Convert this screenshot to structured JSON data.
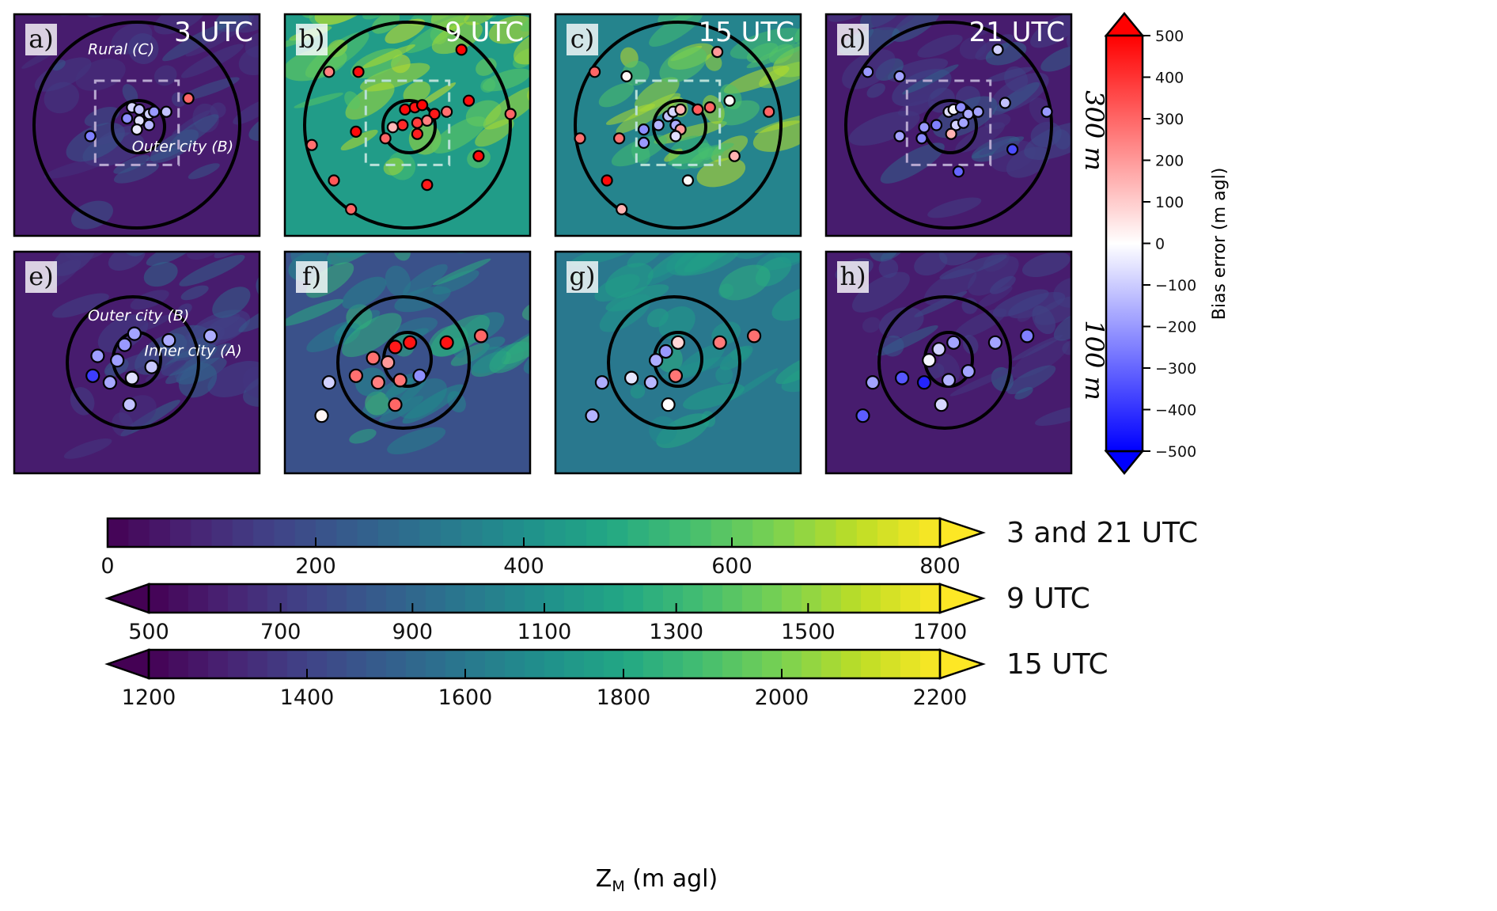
{
  "chart_data": {
    "type": "heatmap",
    "description": "Eight map panels of mixing height Z_M with station bias-error markers overlaid",
    "rows": [
      {
        "label": "300 m",
        "panels": [
          "a",
          "b",
          "c",
          "d"
        ]
      },
      {
        "label": "100 m",
        "panels": [
          "e",
          "f",
          "g",
          "h"
        ]
      }
    ],
    "panels": [
      {
        "id": "a",
        "letter": "a)",
        "time": "3 UTC",
        "row": 0,
        "col": 0,
        "bg_scale": "3 and 21 UTC",
        "background": "dark",
        "show_box": true,
        "labels": [
          {
            "text": "Rural (C)",
            "pos": [
              0.3,
              0.18
            ]
          },
          {
            "text": "Outer city (B)",
            "pos": [
              0.48,
              0.62
            ]
          }
        ],
        "stations": [
          {
            "x": 0.48,
            "y": 0.42,
            "bias": -80
          },
          {
            "x": 0.51,
            "y": 0.43,
            "bias": -120
          },
          {
            "x": 0.55,
            "y": 0.45,
            "bias": -90
          },
          {
            "x": 0.51,
            "y": 0.48,
            "bias": -60
          },
          {
            "x": 0.57,
            "y": 0.44,
            "bias": -200
          },
          {
            "x": 0.62,
            "y": 0.44,
            "bias": -120
          },
          {
            "x": 0.46,
            "y": 0.47,
            "bias": -220
          },
          {
            "x": 0.55,
            "y": 0.5,
            "bias": -140
          },
          {
            "x": 0.5,
            "y": 0.52,
            "bias": -40
          },
          {
            "x": 0.31,
            "y": 0.55,
            "bias": -250
          },
          {
            "x": 0.71,
            "y": 0.38,
            "bias": 300
          }
        ]
      },
      {
        "id": "b",
        "letter": "b)",
        "time": "9 UTC",
        "row": 0,
        "col": 1,
        "bg_scale": "9 UTC",
        "background": "bright",
        "show_box": true,
        "labels": [],
        "stations": [
          {
            "x": 0.49,
            "y": 0.43,
            "bias": 480
          },
          {
            "x": 0.53,
            "y": 0.42,
            "bias": 460
          },
          {
            "x": 0.56,
            "y": 0.41,
            "bias": 490
          },
          {
            "x": 0.61,
            "y": 0.45,
            "bias": 450
          },
          {
            "x": 0.66,
            "y": 0.44,
            "bias": 280
          },
          {
            "x": 0.54,
            "y": 0.49,
            "bias": 380
          },
          {
            "x": 0.58,
            "y": 0.48,
            "bias": 250
          },
          {
            "x": 0.48,
            "y": 0.5,
            "bias": 420
          },
          {
            "x": 0.54,
            "y": 0.54,
            "bias": 440
          },
          {
            "x": 0.44,
            "y": 0.51,
            "bias": 140
          },
          {
            "x": 0.41,
            "y": 0.56,
            "bias": 300
          },
          {
            "x": 0.29,
            "y": 0.53,
            "bias": 480
          },
          {
            "x": 0.18,
            "y": 0.26,
            "bias": 250
          },
          {
            "x": 0.3,
            "y": 0.26,
            "bias": 470
          },
          {
            "x": 0.72,
            "y": 0.16,
            "bias": 490
          },
          {
            "x": 0.75,
            "y": 0.39,
            "bias": 470
          },
          {
            "x": 0.92,
            "y": 0.45,
            "bias": 300
          },
          {
            "x": 0.11,
            "y": 0.59,
            "bias": 280
          },
          {
            "x": 0.79,
            "y": 0.64,
            "bias": 480
          },
          {
            "x": 0.2,
            "y": 0.75,
            "bias": 330
          },
          {
            "x": 0.58,
            "y": 0.77,
            "bias": 450
          },
          {
            "x": 0.27,
            "y": 0.88,
            "bias": 300
          }
        ]
      },
      {
        "id": "c",
        "letter": "c)",
        "time": "15 UTC",
        "row": 0,
        "col": 2,
        "bg_scale": "15 UTC",
        "background": "green",
        "show_box": true,
        "labels": [],
        "stations": [
          {
            "x": 0.46,
            "y": 0.46,
            "bias": -120
          },
          {
            "x": 0.48,
            "y": 0.44,
            "bias": -80
          },
          {
            "x": 0.51,
            "y": 0.43,
            "bias": 150
          },
          {
            "x": 0.49,
            "y": 0.5,
            "bias": -160
          },
          {
            "x": 0.51,
            "y": 0.52,
            "bias": 200
          },
          {
            "x": 0.49,
            "y": 0.55,
            "bias": -60
          },
          {
            "x": 0.42,
            "y": 0.5,
            "bias": -150
          },
          {
            "x": 0.36,
            "y": 0.52,
            "bias": -220
          },
          {
            "x": 0.36,
            "y": 0.58,
            "bias": -200
          },
          {
            "x": 0.58,
            "y": 0.43,
            "bias": 320
          },
          {
            "x": 0.63,
            "y": 0.42,
            "bias": 300
          },
          {
            "x": 0.26,
            "y": 0.56,
            "bias": 280
          },
          {
            "x": 0.16,
            "y": 0.26,
            "bias": 300
          },
          {
            "x": 0.29,
            "y": 0.28,
            "bias": 20
          },
          {
            "x": 0.66,
            "y": 0.17,
            "bias": 200
          },
          {
            "x": 0.71,
            "y": 0.39,
            "bias": 10
          },
          {
            "x": 0.87,
            "y": 0.44,
            "bias": 300
          },
          {
            "x": 0.1,
            "y": 0.56,
            "bias": 280
          },
          {
            "x": 0.73,
            "y": 0.64,
            "bias": 150
          },
          {
            "x": 0.21,
            "y": 0.75,
            "bias": 480
          },
          {
            "x": 0.54,
            "y": 0.75,
            "bias": 10
          },
          {
            "x": 0.27,
            "y": 0.88,
            "bias": 150
          }
        ]
      },
      {
        "id": "d",
        "letter": "d)",
        "time": "21 UTC",
        "row": 0,
        "col": 3,
        "bg_scale": "3 and 21 UTC",
        "background": "dark",
        "show_box": true,
        "labels": [],
        "stations": [
          {
            "x": 0.5,
            "y": 0.44,
            "bias": -60
          },
          {
            "x": 0.52,
            "y": 0.43,
            "bias": -20
          },
          {
            "x": 0.55,
            "y": 0.42,
            "bias": -220
          },
          {
            "x": 0.58,
            "y": 0.45,
            "bias": -160
          },
          {
            "x": 0.62,
            "y": 0.44,
            "bias": -180
          },
          {
            "x": 0.53,
            "y": 0.5,
            "bias": -90
          },
          {
            "x": 0.56,
            "y": 0.49,
            "bias": -180
          },
          {
            "x": 0.45,
            "y": 0.5,
            "bias": -250
          },
          {
            "x": 0.4,
            "y": 0.51,
            "bias": -200
          },
          {
            "x": 0.39,
            "y": 0.56,
            "bias": -230
          },
          {
            "x": 0.51,
            "y": 0.54,
            "bias": 150
          },
          {
            "x": 0.3,
            "y": 0.55,
            "bias": -180
          },
          {
            "x": 0.17,
            "y": 0.26,
            "bias": -200
          },
          {
            "x": 0.3,
            "y": 0.28,
            "bias": -180
          },
          {
            "x": 0.7,
            "y": 0.16,
            "bias": -90
          },
          {
            "x": 0.73,
            "y": 0.4,
            "bias": -120
          },
          {
            "x": 0.9,
            "y": 0.44,
            "bias": -200
          },
          {
            "x": 0.76,
            "y": 0.61,
            "bias": -350
          },
          {
            "x": 0.54,
            "y": 0.71,
            "bias": -300
          }
        ]
      },
      {
        "id": "e",
        "letter": "e)",
        "time": "",
        "row": 1,
        "col": 0,
        "bg_scale": "3 and 21 UTC",
        "background": "dark",
        "show_box": false,
        "labels": [
          {
            "text": "Outer city (B)",
            "pos": [
              0.3,
              0.31
            ]
          },
          {
            "text": "Inner city (A)",
            "pos": [
              0.53,
              0.47
            ]
          }
        ],
        "stations": [
          {
            "x": 0.49,
            "y": 0.37,
            "bias": -180
          },
          {
            "x": 0.63,
            "y": 0.4,
            "bias": -160
          },
          {
            "x": 0.8,
            "y": 0.38,
            "bias": -160
          },
          {
            "x": 0.34,
            "y": 0.47,
            "bias": -190
          },
          {
            "x": 0.45,
            "y": 0.42,
            "bias": -200
          },
          {
            "x": 0.42,
            "y": 0.49,
            "bias": -190
          },
          {
            "x": 0.56,
            "y": 0.52,
            "bias": -110
          },
          {
            "x": 0.48,
            "y": 0.57,
            "bias": -60
          },
          {
            "x": 0.32,
            "y": 0.56,
            "bias": -380
          },
          {
            "x": 0.39,
            "y": 0.59,
            "bias": -170
          },
          {
            "x": 0.47,
            "y": 0.69,
            "bias": -120
          }
        ]
      },
      {
        "id": "f",
        "letter": "f)",
        "time": "",
        "row": 1,
        "col": 1,
        "bg_scale": "9 UTC",
        "background": "medium",
        "show_box": false,
        "labels": [],
        "stations": [
          {
            "x": 0.45,
            "y": 0.43,
            "bias": 450
          },
          {
            "x": 0.51,
            "y": 0.41,
            "bias": 460
          },
          {
            "x": 0.66,
            "y": 0.41,
            "bias": 460
          },
          {
            "x": 0.8,
            "y": 0.38,
            "bias": 300
          },
          {
            "x": 0.36,
            "y": 0.48,
            "bias": 280
          },
          {
            "x": 0.42,
            "y": 0.5,
            "bias": 200
          },
          {
            "x": 0.55,
            "y": 0.56,
            "bias": -220
          },
          {
            "x": 0.47,
            "y": 0.58,
            "bias": 270
          },
          {
            "x": 0.29,
            "y": 0.56,
            "bias": 280
          },
          {
            "x": 0.38,
            "y": 0.59,
            "bias": 250
          },
          {
            "x": 0.18,
            "y": 0.59,
            "bias": -90
          },
          {
            "x": 0.15,
            "y": 0.74,
            "bias": 20
          },
          {
            "x": 0.45,
            "y": 0.69,
            "bias": 300
          }
        ]
      },
      {
        "id": "g",
        "letter": "g)",
        "time": "",
        "row": 1,
        "col": 2,
        "bg_scale": "15 UTC",
        "background": "teal",
        "show_box": false,
        "labels": [],
        "stations": [
          {
            "x": 0.5,
            "y": 0.41,
            "bias": 80
          },
          {
            "x": 0.45,
            "y": 0.45,
            "bias": -200
          },
          {
            "x": 0.67,
            "y": 0.41,
            "bias": 260
          },
          {
            "x": 0.81,
            "y": 0.38,
            "bias": 280
          },
          {
            "x": 0.41,
            "y": 0.49,
            "bias": -160
          },
          {
            "x": 0.31,
            "y": 0.57,
            "bias": -50
          },
          {
            "x": 0.39,
            "y": 0.59,
            "bias": -140
          },
          {
            "x": 0.49,
            "y": 0.56,
            "bias": 270
          },
          {
            "x": 0.19,
            "y": 0.59,
            "bias": -160
          },
          {
            "x": 0.46,
            "y": 0.69,
            "bias": 0
          },
          {
            "x": 0.15,
            "y": 0.74,
            "bias": -150
          }
        ]
      },
      {
        "id": "h",
        "letter": "h)",
        "time": "",
        "row": 1,
        "col": 3,
        "bg_scale": "3 and 21 UTC",
        "background": "dark",
        "show_box": false,
        "labels": [],
        "stations": [
          {
            "x": 0.52,
            "y": 0.41,
            "bias": -180
          },
          {
            "x": 0.46,
            "y": 0.44,
            "bias": -90
          },
          {
            "x": 0.69,
            "y": 0.41,
            "bias": -180
          },
          {
            "x": 0.82,
            "y": 0.38,
            "bias": -250
          },
          {
            "x": 0.42,
            "y": 0.49,
            "bias": -20
          },
          {
            "x": 0.58,
            "y": 0.54,
            "bias": -180
          },
          {
            "x": 0.5,
            "y": 0.58,
            "bias": -150
          },
          {
            "x": 0.31,
            "y": 0.57,
            "bias": -330
          },
          {
            "x": 0.4,
            "y": 0.59,
            "bias": -430
          },
          {
            "x": 0.19,
            "y": 0.59,
            "bias": -180
          },
          {
            "x": 0.47,
            "y": 0.69,
            "bias": -80
          },
          {
            "x": 0.15,
            "y": 0.74,
            "bias": -320
          }
        ]
      }
    ],
    "bias_colorbar": {
      "label": "Bias error (m agl)",
      "range": [
        -500,
        500
      ],
      "ticks": [
        500,
        400,
        300,
        200,
        100,
        0,
        -100,
        -200,
        -300,
        -400,
        -500
      ],
      "tick_labels": [
        "500",
        "400",
        "300",
        "200",
        "100",
        "0",
        "−100",
        "−200",
        "−300",
        "−400",
        "−500"
      ],
      "colormap": "bwr",
      "extend": "both"
    },
    "zm_colorbars": [
      {
        "label": "3 and 21 UTC",
        "range": [
          0,
          800
        ],
        "ticks": [
          0,
          200,
          400,
          600,
          800
        ],
        "extend": "max",
        "levels": 40
      },
      {
        "label": "9 UTC",
        "range": [
          450,
          1750
        ],
        "ticks": [
          500,
          700,
          900,
          1100,
          1300,
          1500,
          1700
        ],
        "extend": "both",
        "levels": 40
      },
      {
        "label": "15 UTC",
        "range": [
          1160,
          2240
        ],
        "ticks": [
          1200,
          1400,
          1600,
          1800,
          2000,
          2200
        ],
        "extend": "both",
        "levels": 40
      }
    ],
    "zm_axis_label": "Z",
    "zm_axis_label_sub": "M",
    "zm_axis_label_suffix": " (m agl)",
    "colormap": "viridis"
  }
}
